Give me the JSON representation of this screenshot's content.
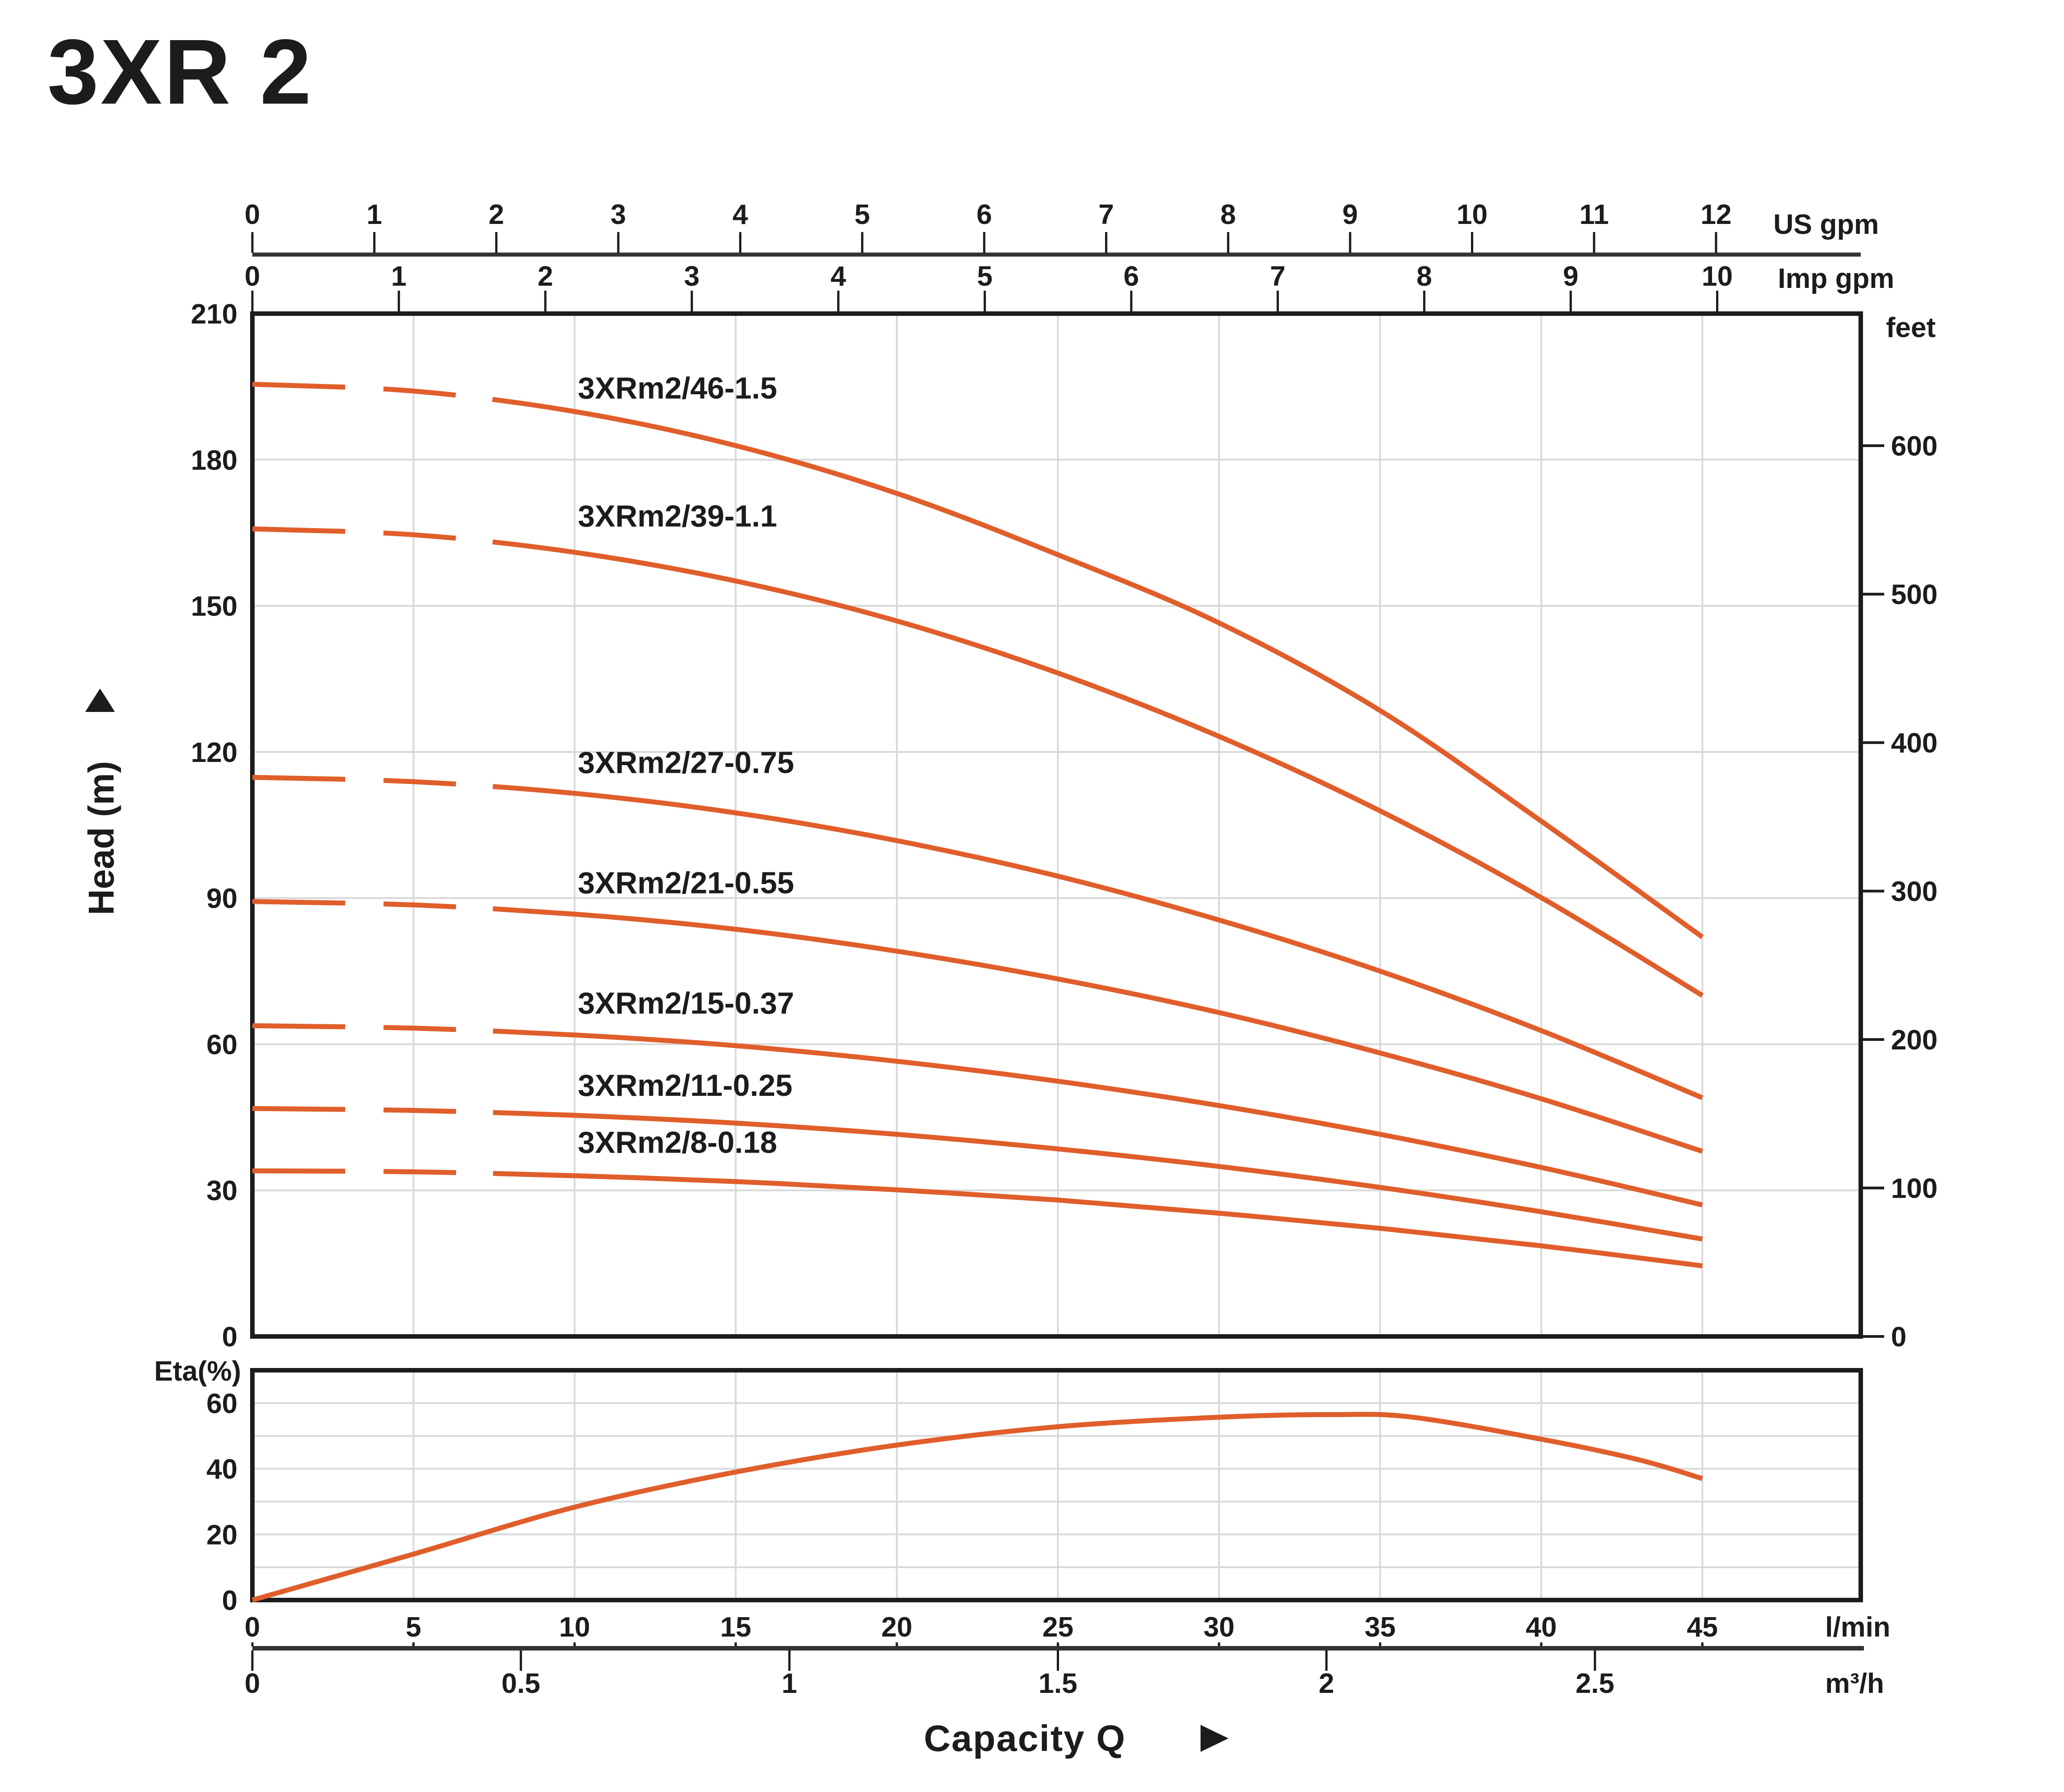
{
  "title": "3XR 2",
  "colors": {
    "accent_orange": "#f2662b",
    "curve_orange": "#e05e2b",
    "grid": "#d9d9d9",
    "frame": "#1c1c1c",
    "axis_line": "#333333",
    "text": "#1c1c1c"
  },
  "axes": {
    "us_gpm": {
      "label": "US gpm",
      "ticks": [
        0,
        1,
        2,
        3,
        4,
        5,
        6,
        7,
        8,
        9,
        10,
        11,
        12
      ],
      "lmin_per_unit": 3.78541
    },
    "imp_gpm": {
      "label": "Imp gpm",
      "ticks": [
        0,
        1,
        2,
        3,
        4,
        5,
        6,
        7,
        8,
        9,
        10
      ],
      "lmin_per_unit": 4.54609
    },
    "head_m": {
      "label": "Head (m)",
      "ticks": [
        0,
        30,
        60,
        90,
        120,
        150,
        180,
        210
      ],
      "min": 0,
      "max": 210
    },
    "feet": {
      "label": "feet",
      "ticks": [
        0,
        100,
        200,
        300,
        400,
        500,
        600
      ],
      "m_per_unit": 0.3048
    },
    "lmin": {
      "label": "l/min",
      "ticks": [
        0,
        5,
        10,
        15,
        20,
        25,
        30,
        35,
        40,
        45
      ],
      "min": 0,
      "max": 50
    },
    "m3h": {
      "label": "m³/h",
      "ticks": [
        "0",
        "0.5",
        "1",
        "1.5",
        "2",
        "2.5"
      ],
      "lmin_per_unit": 16.6667
    },
    "eta": {
      "label": "Eta(%)",
      "ticks": [
        0,
        20,
        40,
        60
      ],
      "min": 0,
      "max": 70
    }
  },
  "capacity": {
    "label": "Capacity Q",
    "arrow": "right-triangle"
  },
  "chart_data": {
    "head_chart": {
      "type": "line",
      "title": "Pump head curves",
      "xlabel": "Capacity Q",
      "ylabel": "Head (m)",
      "x_units": [
        "l/min",
        "m³/h",
        "US gpm",
        "Imp gpm"
      ],
      "y_units": [
        "m",
        "feet"
      ],
      "xlim_lmin": [
        0,
        50
      ],
      "ylim_m": [
        0,
        210
      ],
      "grid": "on",
      "dashed_below_lmin": 8,
      "series": [
        {
          "name": "3XRm2/46-1.5",
          "label_x_lmin": 10.1,
          "label_y_m": 194.8,
          "points_lmin_m": [
            [
              0,
              195.5
            ],
            [
              5,
              194.1
            ],
            [
              10,
              189.9
            ],
            [
              15,
              182.9
            ],
            [
              20,
              173.1
            ],
            [
              25,
              160.5
            ],
            [
              30,
              146.5
            ],
            [
              35,
              128.5
            ],
            [
              40,
              105.8
            ],
            [
              45,
              82
            ]
          ]
        },
        {
          "name": "3XRm2/39-1.1",
          "label_x_lmin": 10.1,
          "label_y_m": 168.5,
          "points_lmin_m": [
            [
              0,
              165.8
            ],
            [
              5,
              164.6
            ],
            [
              10,
              161.0
            ],
            [
              15,
              155.1
            ],
            [
              20,
              146.9
            ],
            [
              25,
              136.2
            ],
            [
              30,
              123.2
            ],
            [
              35,
              107.9
            ],
            [
              40,
              90.1
            ],
            [
              45,
              70
            ]
          ]
        },
        {
          "name": "3XRm2/27-0.75",
          "label_x_lmin": 10.1,
          "label_y_m": 117.9,
          "points_lmin_m": [
            [
              0,
              114.8
            ],
            [
              5,
              113.9
            ],
            [
              10,
              111.5
            ],
            [
              15,
              107.5
            ],
            [
              20,
              101.8
            ],
            [
              25,
              94.5
            ],
            [
              30,
              85.5
            ],
            [
              35,
              75.0
            ],
            [
              40,
              62.8
            ],
            [
              45,
              49
            ]
          ]
        },
        {
          "name": "3XRm2/21-0.55",
          "label_x_lmin": 10.1,
          "label_y_m": 93.2,
          "points_lmin_m": [
            [
              0,
              89.3
            ],
            [
              5,
              88.6
            ],
            [
              10,
              86.7
            ],
            [
              15,
              83.6
            ],
            [
              20,
              79.1
            ],
            [
              25,
              73.4
            ],
            [
              30,
              66.5
            ],
            [
              35,
              58.2
            ],
            [
              40,
              48.8
            ],
            [
              45,
              38
            ]
          ]
        },
        {
          "name": "3XRm2/15-0.37",
          "label_x_lmin": 10.1,
          "label_y_m": 68.5,
          "points_lmin_m": [
            [
              0,
              63.8
            ],
            [
              5,
              63.3
            ],
            [
              10,
              61.9
            ],
            [
              15,
              59.7
            ],
            [
              20,
              56.5
            ],
            [
              25,
              52.4
            ],
            [
              30,
              47.4
            ],
            [
              35,
              41.5
            ],
            [
              40,
              34.7
            ],
            [
              45,
              27
            ]
          ]
        },
        {
          "name": "3XRm2/11-0.25",
          "label_x_lmin": 10.1,
          "label_y_m": 51.6,
          "points_lmin_m": [
            [
              0,
              46.8
            ],
            [
              5,
              46.4
            ],
            [
              10,
              45.4
            ],
            [
              15,
              43.8
            ],
            [
              20,
              41.5
            ],
            [
              25,
              38.5
            ],
            [
              30,
              34.9
            ],
            [
              35,
              30.6
            ],
            [
              40,
              25.6
            ],
            [
              45,
              20
            ]
          ]
        },
        {
          "name": "3XRm2/8-0.18",
          "label_x_lmin": 10.1,
          "label_y_m": 39.9,
          "points_lmin_m": [
            [
              0,
              34.0
            ],
            [
              5,
              33.8
            ],
            [
              10,
              33.0
            ],
            [
              15,
              31.8
            ],
            [
              20,
              30.1
            ],
            [
              25,
              28.0
            ],
            [
              30,
              25.3
            ],
            [
              35,
              22.2
            ],
            [
              40,
              18.6
            ],
            [
              45,
              14.5
            ]
          ]
        }
      ]
    },
    "eta_chart": {
      "type": "line",
      "title": "Efficiency curve",
      "ylabel": "Eta(%)",
      "ylim": [
        0,
        70
      ],
      "grid": "on",
      "points_lmin_pct": [
        [
          0,
          0
        ],
        [
          5,
          14
        ],
        [
          10,
          28.3
        ],
        [
          15,
          39
        ],
        [
          20,
          47.2
        ],
        [
          25,
          52.8
        ],
        [
          30,
          55.7
        ],
        [
          33.5,
          56.5
        ],
        [
          36,
          55.7
        ],
        [
          40,
          49
        ],
        [
          43,
          42.8
        ],
        [
          45,
          37
        ]
      ]
    }
  }
}
